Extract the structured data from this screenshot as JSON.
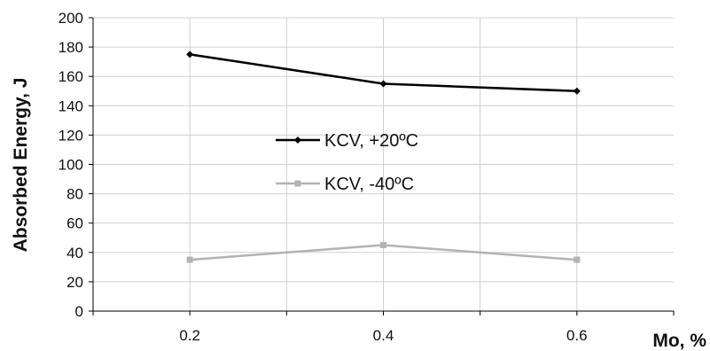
{
  "chart_data": {
    "type": "line",
    "xlabel": "Mo, %",
    "ylabel": "Absorbed Energy, J",
    "xlim": [
      0.1,
      0.7
    ],
    "ylim": [
      0,
      200
    ],
    "y_ticks": [
      0,
      20,
      40,
      60,
      80,
      100,
      120,
      140,
      160,
      180,
      200
    ],
    "x_tick_labels": [
      "0.2",
      "0.4",
      "0.6"
    ],
    "x_gridlines": [
      0.2,
      0.3,
      0.4,
      0.5,
      0.6
    ],
    "grid": true,
    "legend_position": "center",
    "series": [
      {
        "name": "KCV, +20ºC",
        "color": "#000000",
        "marker": "diamond",
        "x": [
          0.2,
          0.4,
          0.6
        ],
        "values": [
          175,
          155,
          150
        ]
      },
      {
        "name": "KCV, -40ºC",
        "color": "#b3b3b3",
        "marker": "square",
        "x": [
          0.2,
          0.4,
          0.6
        ],
        "values": [
          35,
          45,
          35
        ]
      }
    ]
  }
}
